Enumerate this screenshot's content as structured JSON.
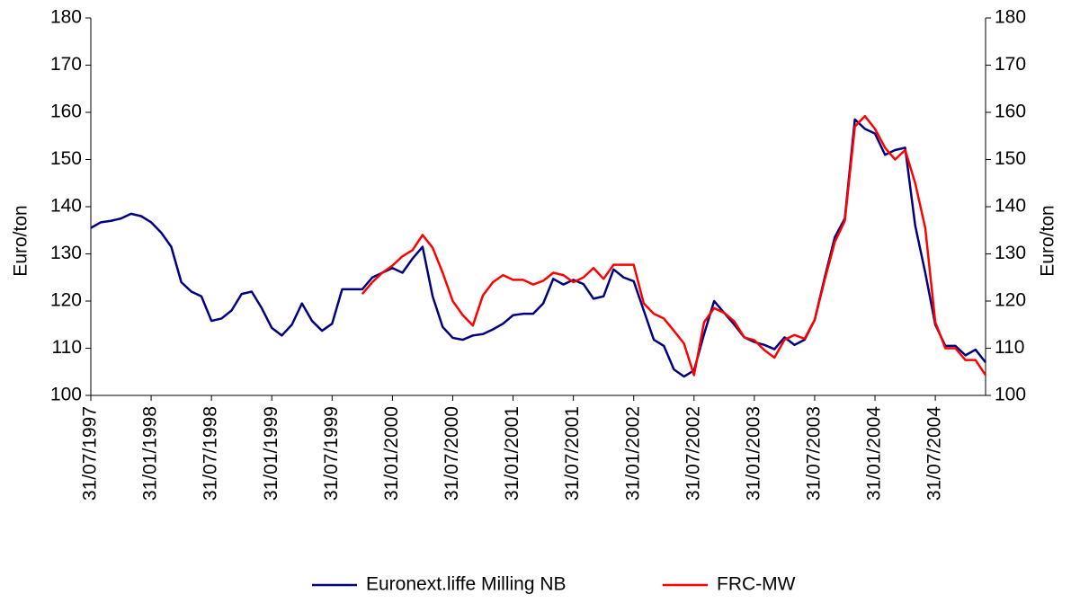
{
  "chart_data": {
    "type": "line",
    "ylabel": "Euro/ton",
    "y2label": "Euro/ton",
    "categories": [
      "31/07/1997",
      null,
      null,
      null,
      null,
      null,
      "31/01/1998",
      null,
      null,
      null,
      null,
      null,
      "31/07/1998",
      null,
      null,
      null,
      null,
      null,
      "31/01/1999",
      null,
      null,
      null,
      null,
      null,
      "31/07/1999",
      null,
      null,
      null,
      null,
      null,
      "31/01/2000",
      null,
      null,
      null,
      null,
      null,
      "31/07/2000",
      null,
      null,
      null,
      null,
      null,
      "31/01/2001",
      null,
      null,
      null,
      null,
      null,
      "31/07/2001",
      null,
      null,
      null,
      null,
      null,
      "31/01/2002",
      null,
      null,
      null,
      null,
      null,
      "31/07/2002",
      null,
      null,
      null,
      null,
      null,
      "31/01/2003",
      null,
      null,
      null,
      null,
      null,
      "31/07/2003",
      null,
      null,
      null,
      null,
      null,
      "31/01/2004",
      null,
      null,
      null,
      null,
      null,
      "31/07/2004",
      null,
      null,
      null,
      null,
      null
    ],
    "series": [
      {
        "name": "Euronext.liffe Milling NB",
        "color": "#000080",
        "values": [
          135.5,
          136.7,
          137,
          137.5,
          138.5,
          138,
          136.7,
          134.5,
          131.5,
          124,
          122,
          121,
          115.8,
          116.3,
          118,
          121.5,
          122,
          118.5,
          114.3,
          112.7,
          115,
          119.5,
          115.8,
          113.7,
          115.2,
          122.5,
          122.5,
          122.5,
          125,
          126,
          127,
          126,
          129,
          131.5,
          121,
          114.5,
          112.2,
          111.8,
          112.7,
          113,
          114,
          115.2,
          117,
          117.3,
          117.3,
          119.5,
          124.7,
          123.5,
          124.5,
          123.6,
          120.5,
          121,
          126.7,
          125,
          124.2,
          118,
          111.8,
          110.5,
          105.5,
          104,
          105.3,
          113,
          120,
          117.5,
          115,
          112.3,
          111.3,
          110.7,
          109.8,
          112.3,
          110.7,
          111.8,
          116,
          125,
          133.5,
          137.5,
          158.5,
          156.5,
          155.5,
          151,
          152,
          152.5,
          136,
          126,
          115,
          110.5,
          110.5,
          108.5,
          109.7,
          107
        ]
      },
      {
        "name": "FRC-MW",
        "color": "#ff0000",
        "axis": "y2",
        "values": [
          null,
          null,
          null,
          null,
          null,
          null,
          null,
          null,
          null,
          null,
          null,
          null,
          null,
          null,
          null,
          null,
          null,
          null,
          null,
          null,
          null,
          null,
          null,
          null,
          null,
          null,
          null,
          121.5,
          124,
          126,
          127.5,
          129.5,
          130.8,
          134,
          131.3,
          126,
          120,
          117,
          114.8,
          121.2,
          124,
          125.5,
          124.5,
          124.5,
          123.5,
          124.3,
          126,
          125.5,
          124,
          125,
          127,
          124.7,
          127.7,
          127.7,
          127.7,
          119.5,
          117.3,
          116.3,
          113.7,
          111,
          104.3,
          115.5,
          118.5,
          117.5,
          115.7,
          112.3,
          111.7,
          109.6,
          108,
          111.8,
          112.8,
          112,
          116,
          124.5,
          132.5,
          137,
          157,
          159.2,
          156.5,
          152.5,
          150,
          152,
          145,
          135.5,
          115.5,
          110,
          110,
          107.5,
          107.5,
          104.3
        ]
      }
    ],
    "ylim": [
      100,
      180
    ],
    "yticks": [
      100,
      110,
      120,
      130,
      140,
      150,
      160,
      170,
      180
    ],
    "y2lim": [
      100,
      180
    ],
    "y2ticks": [
      100,
      110,
      120,
      130,
      140,
      150,
      160,
      170,
      180
    ],
    "grid": false,
    "legend": "bottom"
  }
}
